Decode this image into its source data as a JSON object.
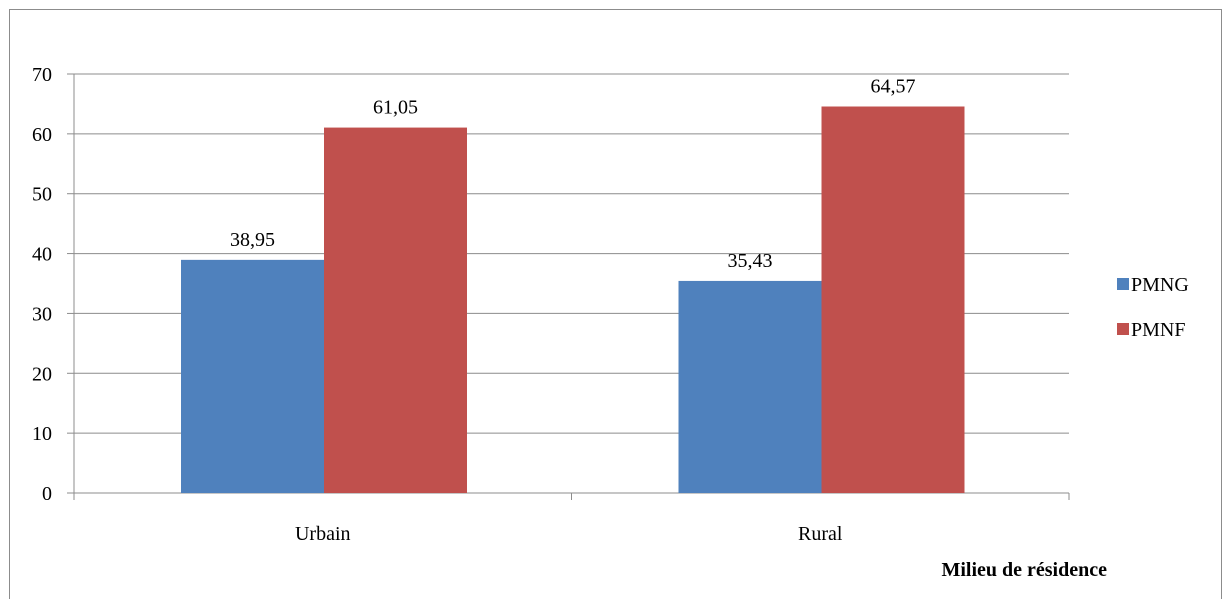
{
  "chart_data": {
    "type": "bar",
    "categories": [
      "Urbain",
      "Rural"
    ],
    "series": [
      {
        "name": "PMNG",
        "color": "#4f81bd",
        "values": [
          38.95,
          35.43
        ],
        "labels": [
          "38,95",
          "35,43"
        ]
      },
      {
        "name": "PMNF",
        "color": "#c0504d",
        "values": [
          61.05,
          64.57
        ],
        "labels": [
          "61,05",
          "64,57"
        ]
      }
    ],
    "xlabel": "Milieu de résidence",
    "ylabel": "",
    "ylim": [
      0,
      70
    ],
    "yticks": [
      0,
      10,
      20,
      30,
      40,
      50,
      60,
      70
    ],
    "grid": true,
    "legend_position": "right"
  }
}
